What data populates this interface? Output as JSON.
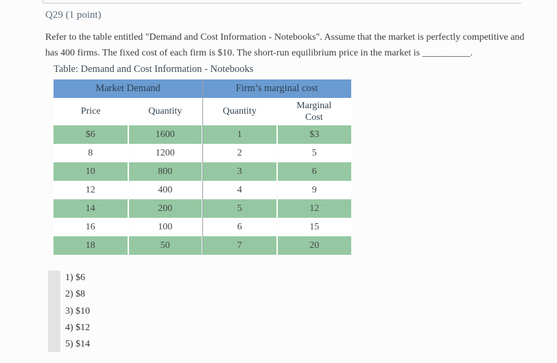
{
  "question": {
    "header": "Q29 (1 point)",
    "text": "Refer to the table entitled \"Demand and Cost Information - Notebooks\". Assume that the market is perfectly competitive and has 400 firms. The fixed cost of each firm is $10. The short-run equilibrium price in the market is __________."
  },
  "table": {
    "caption": "Table: Demand and Cost Information - Notebooks",
    "column_groups": [
      "Market Demand",
      "Firm’s marginal cost"
    ],
    "columns": [
      "Price",
      "Quantity",
      "Quantity",
      "Marginal Cost"
    ],
    "rows": [
      [
        "$6",
        "1600",
        "1",
        "$3"
      ],
      [
        "8",
        "1200",
        "2",
        "5"
      ],
      [
        "10",
        "800",
        "3",
        "6"
      ],
      [
        "12",
        "400",
        "4",
        "9"
      ],
      [
        "14",
        "200",
        "5",
        "12"
      ],
      [
        "16",
        "100",
        "6",
        "15"
      ],
      [
        "18",
        "50",
        "7",
        "20"
      ]
    ]
  },
  "options": [
    "1) $6",
    "2) $8",
    "3) $10",
    "4) $12",
    "5) $14"
  ],
  "colors": {
    "table_header_bg": "#6a9bd1",
    "table_row_highlight": "#95c8a2",
    "table_divider": "#9aa0a6",
    "heading_text": "#5d6d7e",
    "options_bar": "#e4e4e4"
  }
}
